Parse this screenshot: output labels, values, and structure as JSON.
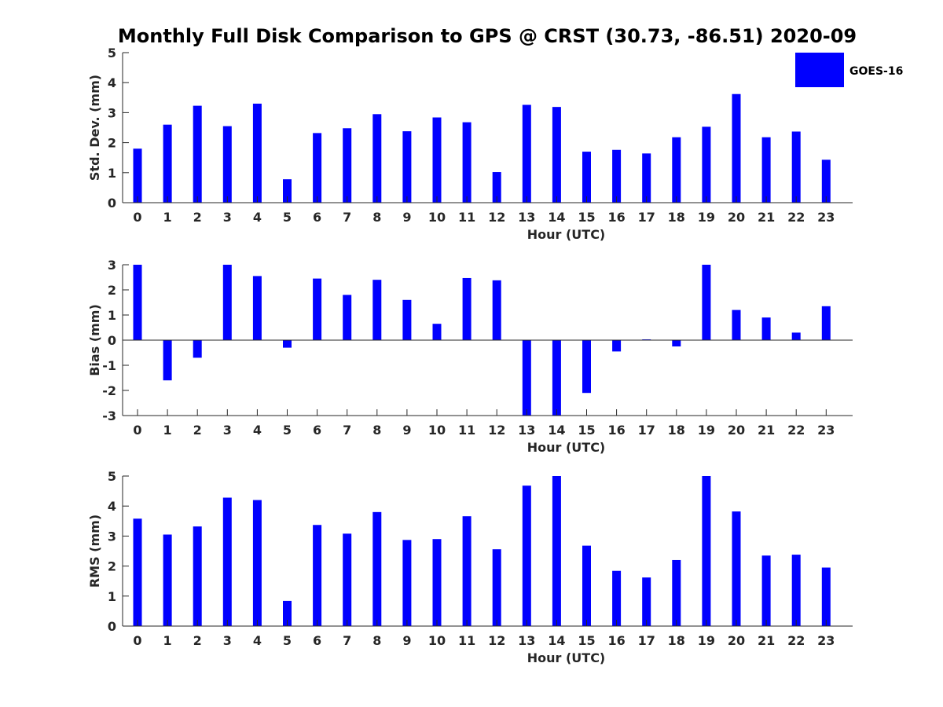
{
  "title": "Monthly Full Disk Comparison to GPS @ CRST (30.73, -86.51) 2020-09",
  "legend": {
    "label": "GOES-16",
    "color": "#0000ff",
    "position": "top-right"
  },
  "chart_data": [
    {
      "type": "bar",
      "xlabel": "Hour (UTC)",
      "ylabel": "Std. Dev. (mm)",
      "ylim": [
        0,
        5
      ],
      "yticks": [
        0,
        1,
        2,
        3,
        4,
        5
      ],
      "categories": [
        "0",
        "1",
        "2",
        "3",
        "4",
        "5",
        "6",
        "7",
        "8",
        "9",
        "10",
        "11",
        "12",
        "13",
        "14",
        "15",
        "16",
        "17",
        "18",
        "19",
        "20",
        "21",
        "22",
        "23"
      ],
      "values": [
        1.8,
        2.6,
        3.23,
        2.55,
        3.3,
        0.78,
        2.32,
        2.48,
        2.95,
        2.38,
        2.84,
        2.68,
        1.02,
        3.26,
        3.19,
        1.7,
        1.76,
        1.64,
        2.18,
        2.53,
        3.62,
        2.18,
        2.37,
        1.43
      ],
      "series_name": "GOES-16"
    },
    {
      "type": "bar",
      "xlabel": "Hour (UTC)",
      "ylabel": "Bias (mm)",
      "ylim": [
        -3,
        3
      ],
      "yticks": [
        -3,
        -2,
        -1,
        0,
        1,
        2,
        3
      ],
      "categories": [
        "0",
        "1",
        "2",
        "3",
        "4",
        "5",
        "6",
        "7",
        "8",
        "9",
        "10",
        "11",
        "12",
        "13",
        "14",
        "15",
        "16",
        "17",
        "18",
        "19",
        "20",
        "21",
        "22",
        "23"
      ],
      "values": [
        3.0,
        -1.6,
        -0.7,
        3.0,
        2.55,
        -0.3,
        2.45,
        1.8,
        2.4,
        1.6,
        0.65,
        2.47,
        2.38,
        -3.0,
        -3.0,
        -2.1,
        -0.45,
        0.03,
        -0.25,
        3.0,
        1.2,
        0.9,
        0.3,
        1.35
      ],
      "series_name": "GOES-16"
    },
    {
      "type": "bar",
      "xlabel": "Hour (UTC)",
      "ylabel": "RMS (mm)",
      "ylim": [
        0,
        5
      ],
      "yticks": [
        0,
        1,
        2,
        3,
        4,
        5
      ],
      "categories": [
        "0",
        "1",
        "2",
        "3",
        "4",
        "5",
        "6",
        "7",
        "8",
        "9",
        "10",
        "11",
        "12",
        "13",
        "14",
        "15",
        "16",
        "17",
        "18",
        "19",
        "20",
        "21",
        "22",
        "23"
      ],
      "values": [
        3.58,
        3.05,
        3.32,
        4.28,
        4.2,
        0.84,
        3.37,
        3.08,
        3.8,
        2.87,
        2.9,
        3.66,
        2.56,
        4.68,
        5.0,
        2.68,
        1.84,
        1.62,
        2.2,
        5.0,
        3.82,
        2.35,
        2.38,
        1.95
      ],
      "series_name": "GOES-16"
    }
  ]
}
